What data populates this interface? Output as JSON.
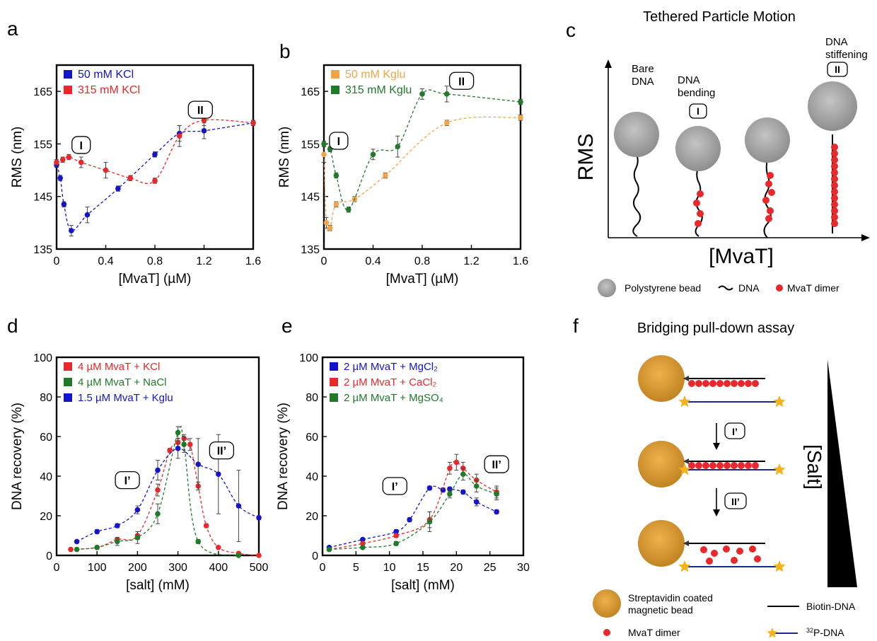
{
  "colors": {
    "blue": "#1414c8",
    "red": "#e8282a",
    "green": "#1f7a2a",
    "orange": "#f2a548",
    "bead_gray": "#a8a8a8",
    "bead_orange": "#d99a2b",
    "navy": "#1a2a8a",
    "star": "#f5b21a"
  },
  "panel_letters": {
    "a": "a",
    "b": "b",
    "c": "c",
    "d": "d",
    "e": "e",
    "f": "f"
  },
  "chart_data": [
    {
      "id": "a",
      "type": "scatter",
      "xlabel": "[MvaT] (µM)",
      "ylabel": "RMS (nm)",
      "xlim": [
        0,
        1.6
      ],
      "ylim": [
        135,
        170
      ],
      "xticks": [
        0,
        0.4,
        0.8,
        1.2,
        1.6
      ],
      "xtick_labels": [
        "0",
        "0.4",
        "0.8",
        "1.2",
        "1.6"
      ],
      "yticks": [
        135,
        145,
        155,
        165
      ],
      "ytick_labels": [
        "135",
        "145",
        "155",
        "165"
      ],
      "legend_position": "top-left",
      "grid": false,
      "series": [
        {
          "name": "50 mM KCl",
          "color": "blue",
          "x": [
            0,
            0.03,
            0.06,
            0.12,
            0.25,
            0.5,
            0.8,
            1.0,
            1.2,
            1.6
          ],
          "y": [
            151,
            148.5,
            143.5,
            138.5,
            141.5,
            146.5,
            153,
            157,
            157.5,
            159
          ],
          "err": [
            0.5,
            0.5,
            0.5,
            1,
            1.5,
            0.5,
            0.5,
            1.5,
            1.5,
            0.5
          ]
        },
        {
          "name": "315 mM KCl",
          "color": "red",
          "x": [
            0,
            0.05,
            0.1,
            0.2,
            0.4,
            0.6,
            0.8,
            1.0,
            1.2,
            1.6
          ],
          "y": [
            151.5,
            152,
            152.5,
            151.5,
            150,
            148.5,
            148,
            156.5,
            159.5,
            159
          ],
          "err": [
            0.5,
            0.5,
            0.5,
            1,
            1.5,
            0.5,
            0.5,
            2,
            1,
            0.5
          ]
        }
      ],
      "annotations": [
        {
          "text": "I",
          "x": 0.2,
          "y": 154.8
        },
        {
          "text": "II",
          "x": 1.17,
          "y": 161.5
        }
      ]
    },
    {
      "id": "b",
      "type": "scatter",
      "xlabel": "[MvaT] (µM)",
      "ylabel": "RMS (nm)",
      "xlim": [
        0,
        1.6
      ],
      "ylim": [
        135,
        170
      ],
      "xticks": [
        0,
        0.4,
        0.8,
        1.2,
        1.6
      ],
      "xtick_labels": [
        "0",
        "0.4",
        "0.8",
        "1.2",
        "1.6"
      ],
      "yticks": [
        135,
        145,
        155,
        165
      ],
      "ytick_labels": [
        "135",
        "145",
        "155",
        "165"
      ],
      "legend_position": "top-left",
      "grid": false,
      "series": [
        {
          "name": "50 mM Kglu",
          "color": "orange",
          "x": [
            0,
            0.02,
            0.05,
            0.1,
            0.25,
            0.5,
            1.0,
            1.6
          ],
          "y": [
            153,
            140,
            139,
            143.5,
            144.5,
            149,
            159,
            160
          ],
          "err": [
            1.5,
            1,
            0.5,
            0.5,
            0.5,
            0.5,
            0.5,
            0.5
          ]
        },
        {
          "name": "315 mM Kglu",
          "color": "green",
          "x": [
            0,
            0.05,
            0.1,
            0.2,
            0.4,
            0.6,
            0.8,
            1.0,
            1.6
          ],
          "y": [
            155,
            154,
            149,
            142.5,
            153,
            154.5,
            164.5,
            164.5,
            163
          ],
          "err": [
            0.5,
            0.5,
            0.5,
            0.5,
            1,
            2,
            1,
            1.5,
            0.5
          ]
        }
      ],
      "annotations": [
        {
          "text": "I",
          "x": 0.12,
          "y": 155.6
        },
        {
          "text": "II",
          "x": 1.12,
          "y": 167
        }
      ]
    },
    {
      "id": "d",
      "type": "scatter",
      "xlabel": "[salt] (mM)",
      "ylabel": "DNA recovery (%)",
      "xlim": [
        0,
        500
      ],
      "ylim": [
        0,
        100
      ],
      "xticks": [
        0,
        100,
        200,
        300,
        400,
        500
      ],
      "xtick_labels": [
        "0",
        "100",
        "200",
        "300",
        "400",
        "500"
      ],
      "yticks": [
        0,
        20,
        40,
        60,
        80,
        100
      ],
      "ytick_labels": [
        "0",
        "20",
        "40",
        "60",
        "80",
        "100"
      ],
      "legend_position": "top-left",
      "grid": false,
      "series": [
        {
          "name": "4 µM MvaT + KCl",
          "color": "red",
          "x": [
            35,
            100,
            150,
            200,
            250,
            280,
            300,
            315,
            330,
            350,
            370,
            400,
            450,
            500
          ],
          "y": [
            3,
            4,
            8,
            10,
            33,
            53,
            57,
            59,
            56,
            35,
            15,
            4,
            1,
            0
          ],
          "err": [
            0.5,
            0.5,
            1,
            2,
            3,
            1,
            2,
            2,
            3,
            2,
            1,
            0.5,
            0.5,
            0.5
          ]
        },
        {
          "name": "4 µM MvaT + NaCl",
          "color": "green",
          "x": [
            50,
            100,
            150,
            200,
            250,
            300,
            315,
            350,
            450
          ],
          "y": [
            3,
            4,
            7,
            9,
            21,
            62,
            56,
            7,
            0
          ],
          "err": [
            0.5,
            0.5,
            2,
            3,
            5,
            3,
            4,
            1,
            0.5
          ]
        },
        {
          "name": "1.5 µM MvaT + Kglu",
          "color": "blue",
          "x": [
            50,
            100,
            150,
            200,
            250,
            300,
            350,
            400,
            450,
            500
          ],
          "y": [
            7,
            12,
            15,
            23,
            43,
            54,
            46,
            41,
            25,
            19
          ],
          "err": [
            0.5,
            1,
            1,
            2,
            5,
            5,
            13,
            20,
            18,
            1
          ]
        }
      ],
      "annotations": [
        {
          "text": "I’",
          "x": 175,
          "y": 38
        },
        {
          "text": "II’",
          "x": 408,
          "y": 53
        }
      ]
    },
    {
      "id": "e",
      "type": "scatter",
      "xlabel": "[salt] (mM)",
      "ylabel": "DNA recovery (%)",
      "xlim": [
        0,
        30
      ],
      "ylim": [
        0,
        100
      ],
      "xticks": [
        0,
        5,
        10,
        15,
        20,
        25,
        30
      ],
      "xtick_labels": [
        "0",
        "5",
        "10",
        "15",
        "20",
        "25",
        "30"
      ],
      "yticks": [
        0,
        20,
        40,
        60,
        80,
        100
      ],
      "ytick_labels": [
        "0",
        "20",
        "40",
        "60",
        "80",
        "100"
      ],
      "legend_position": "top-left",
      "grid": false,
      "series": [
        {
          "name": "2 µM MvaT + MgCl₂",
          "color": "blue",
          "x": [
            1,
            6,
            11,
            13,
            16,
            18,
            19,
            21,
            23,
            26
          ],
          "y": [
            4,
            8,
            12,
            18,
            34,
            33,
            33.5,
            32,
            27,
            22
          ],
          "err": [
            0.5,
            0.5,
            1,
            1,
            1,
            1,
            1,
            1,
            2,
            1
          ]
        },
        {
          "name": "2 µM MvaT + CaCl₂",
          "color": "red",
          "x": [
            1,
            6,
            11,
            16,
            19,
            20,
            21,
            23,
            26
          ],
          "y": [
            3,
            6,
            10,
            18,
            44,
            47,
            44,
            38,
            32
          ],
          "err": [
            0.5,
            0.5,
            1,
            4,
            3,
            4,
            3,
            3,
            3
          ]
        },
        {
          "name": "2 µM MvaT + MgSO₄",
          "color": "green",
          "x": [
            1,
            6,
            11,
            16,
            19,
            21,
            23,
            26
          ],
          "y": [
            3,
            4,
            6,
            17,
            31,
            41,
            35,
            31
          ],
          "err": [
            0.5,
            0.5,
            1,
            5,
            2,
            3,
            3,
            3
          ]
        }
      ],
      "annotations": [
        {
          "text": "I’",
          "x": 10.8,
          "y": 35
        },
        {
          "text": "II’",
          "x": 26,
          "y": 46
        }
      ]
    }
  ],
  "panel_c": {
    "title": "Tethered Particle Motion",
    "ylabel": "RMS",
    "xlabel": "[MvaT]",
    "labels": {
      "bare": [
        "Bare",
        "DNA"
      ],
      "bending": [
        "DNA",
        "bending"
      ],
      "stiffening": [
        "DNA",
        "stiffening"
      ]
    },
    "badges": {
      "bending": "I",
      "stiffening": "II"
    },
    "legend": {
      "bead": "Polystyrene bead",
      "dna": "DNA",
      "mvat": "MvaT dimer"
    }
  },
  "panel_f": {
    "title": "Bridging pull-down assay",
    "steps": [
      "I’",
      "II’"
    ],
    "salt_label": "[Salt]",
    "legend": {
      "bead": [
        "Streptavidin coated",
        "magnetic bead"
      ],
      "biotin": "Biotin-DNA",
      "mvat": "MvaT dimer",
      "p32_sup": "32",
      "p32": "P-DNA"
    }
  }
}
